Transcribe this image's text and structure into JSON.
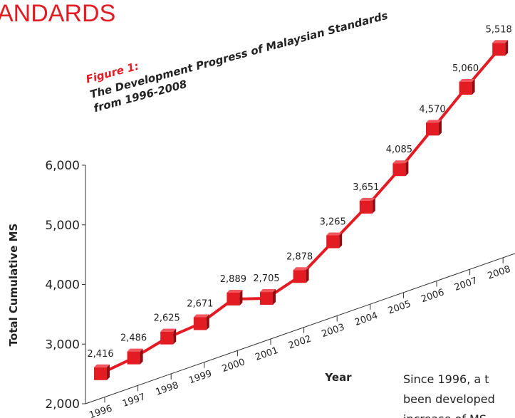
{
  "header": "ANDARDS",
  "chart_data": {
    "type": "line",
    "figure_label": "Figure 1:",
    "title": "The Development Progress of Malaysian Standards",
    "subtitle": "from 1996-2008",
    "x_label": "Year",
    "y_label": "Total Cumulative MS",
    "categories": [
      "1996",
      "1997",
      "1998",
      "1999",
      "2000",
      "2001",
      "2002",
      "2003",
      "2004",
      "2005",
      "2006",
      "2007",
      "2008"
    ],
    "values": [
      2416,
      2486,
      2625,
      2671,
      2889,
      2705,
      2878,
      3265,
      3651,
      4085,
      4570,
      5060,
      5518
    ],
    "value_labels": [
      "2,416",
      "2,486",
      "2,625",
      "2,671",
      "2,889",
      "2,705",
      "2,878",
      "3,265",
      "3,651",
      "4,085",
      "4,570",
      "5,060",
      "5,518"
    ],
    "color": "#e31b23",
    "ylim": [
      2000,
      6000
    ],
    "yticks": [
      {
        "value": 2000,
        "label": "2,000"
      },
      {
        "value": 3000,
        "label": "3,000"
      },
      {
        "value": 4000,
        "label": "4,000"
      },
      {
        "value": 5000,
        "label": "5,000"
      },
      {
        "value": 6000,
        "label": "6,000"
      }
    ]
  },
  "body_text": [
    "Since 1996, a t",
    "been developed",
    "increase of MS"
  ]
}
